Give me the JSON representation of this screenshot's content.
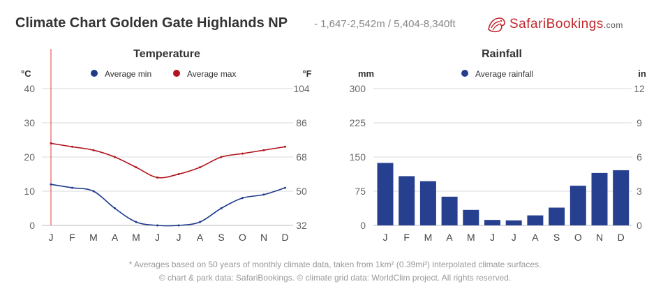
{
  "header": {
    "title": "Climate Chart Golden Gate Highlands NP",
    "subtitle": "- 1,647-2,542m / 5,404-8,340ft",
    "logo": {
      "safari": "Safari",
      "bookings": "Bookings",
      "dotcom": ".com"
    }
  },
  "colors": {
    "min": "#1f3a8a",
    "max": "#b0141c",
    "rain": "#263f8f",
    "cursor": "#e23b3b",
    "grid": "#d9d9d9"
  },
  "chart_data": [
    {
      "type": "line",
      "title": "Temperature",
      "categories": [
        "J",
        "F",
        "M",
        "A",
        "M",
        "J",
        "J",
        "A",
        "S",
        "O",
        "N",
        "D"
      ],
      "series": [
        {
          "name": "Average min",
          "values": [
            12,
            11,
            10,
            5,
            1,
            0,
            0,
            1,
            5,
            8,
            9,
            11
          ]
        },
        {
          "name": "Average max",
          "values": [
            24,
            23,
            22,
            20,
            17,
            14,
            15,
            17,
            20,
            21,
            22,
            23
          ]
        }
      ],
      "ylabel": "°C",
      "y2label": "°F",
      "ylim": [
        0,
        40
      ],
      "yticks": [
        "0",
        "10",
        "20",
        "30",
        "40"
      ],
      "y2ticks": [
        "32",
        "50",
        "68",
        "86",
        "104"
      ],
      "grid": true,
      "legend": "top"
    },
    {
      "type": "bar",
      "title": "Rainfall",
      "categories": [
        "J",
        "F",
        "M",
        "A",
        "M",
        "J",
        "J",
        "A",
        "S",
        "O",
        "N",
        "D"
      ],
      "series": [
        {
          "name": "Average rainfall",
          "values": [
            137,
            108,
            97,
            63,
            34,
            12,
            11,
            22,
            39,
            87,
            115,
            121
          ]
        }
      ],
      "ylabel": "mm",
      "y2label": "in",
      "ylim": [
        0,
        300
      ],
      "yticks": [
        "0",
        "75",
        "150",
        "225",
        "300"
      ],
      "y2ticks": [
        "0",
        "3",
        "6",
        "9",
        "12"
      ],
      "grid": true,
      "legend": "top"
    }
  ],
  "footer": {
    "note": "* Averages based on 50 years of monthly climate data, taken from 1km² (0.39mi²) interpolated climate surfaces.",
    "credits": "© chart & park data: SafariBookings. © climate grid data: WorldClim project. All rights reserved."
  }
}
